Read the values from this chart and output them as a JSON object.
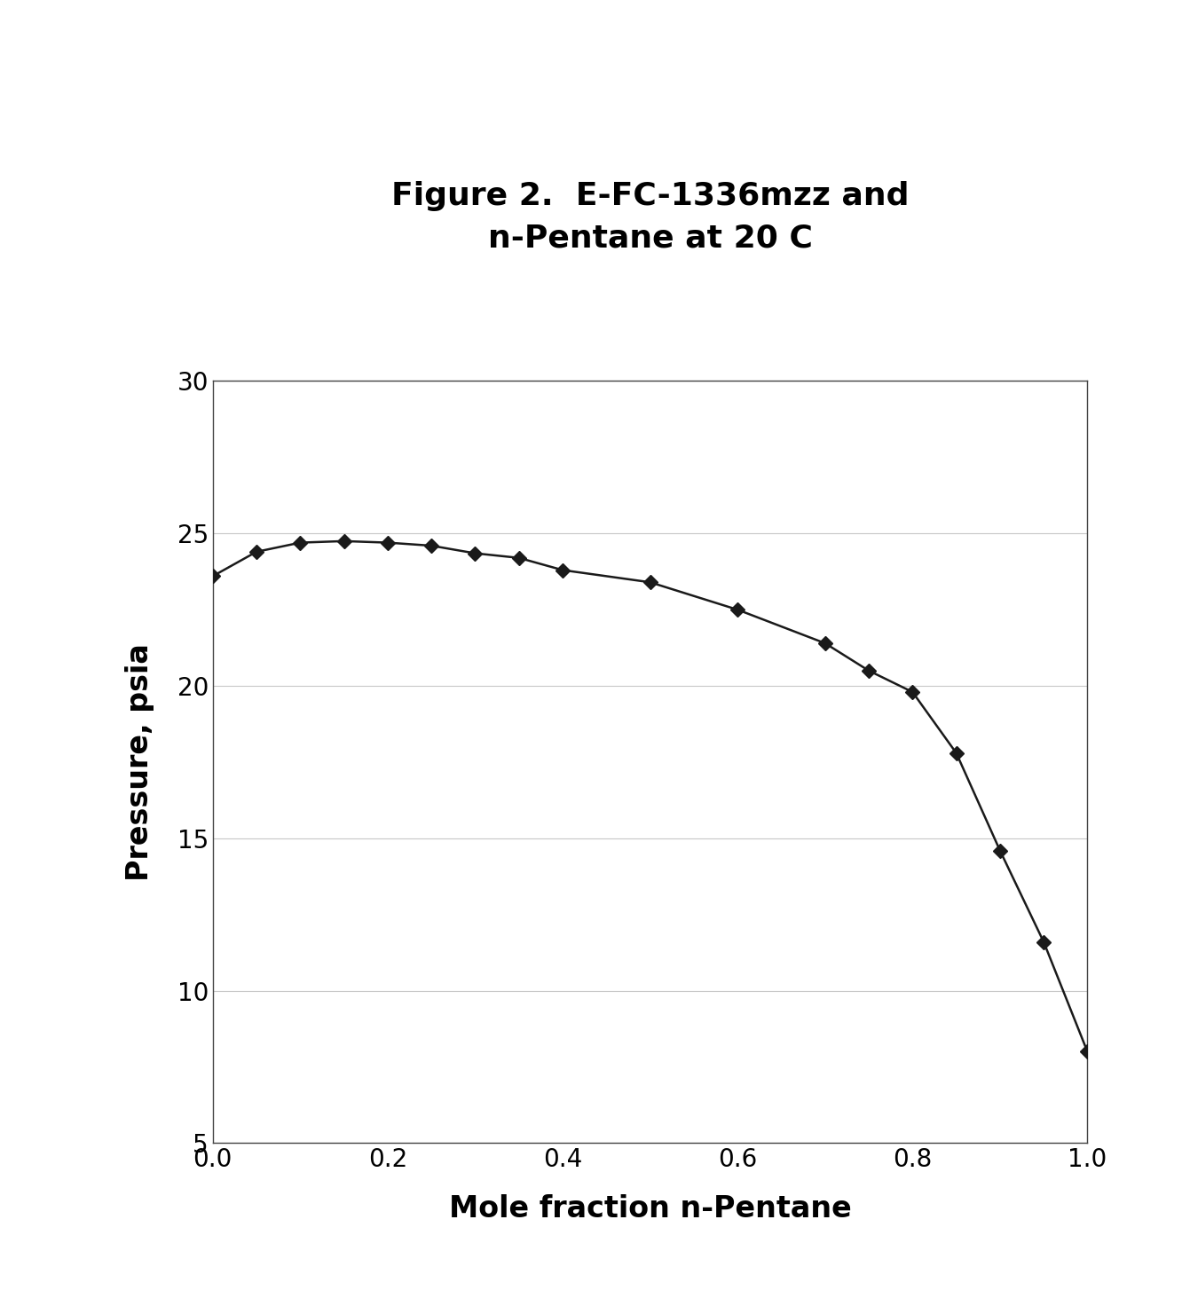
{
  "title_line1": "Figure 2.  E-FC-1336mzz and",
  "title_line2": "n-Pentane at 20 C",
  "xlabel": "Mole fraction n-Pentane",
  "ylabel": "Pressure, psia",
  "x_data": [
    0.0,
    0.05,
    0.1,
    0.15,
    0.2,
    0.25,
    0.3,
    0.35,
    0.4,
    0.5,
    0.6,
    0.7,
    0.75,
    0.8,
    0.85,
    0.9,
    0.95,
    1.0
  ],
  "y_data": [
    23.6,
    24.4,
    24.7,
    24.75,
    24.7,
    24.6,
    24.35,
    24.2,
    23.8,
    23.4,
    22.5,
    21.4,
    20.5,
    19.8,
    17.8,
    14.6,
    11.6,
    8.0
  ],
  "xlim": [
    0,
    1
  ],
  "ylim": [
    5,
    30
  ],
  "xticks": [
    0,
    0.2,
    0.4,
    0.6,
    0.8,
    1.0
  ],
  "yticks": [
    5,
    10,
    15,
    20,
    25,
    30
  ],
  "line_color": "#1a1a1a",
  "marker_color": "#1a1a1a",
  "bg_color": "#ffffff",
  "grid_color": "#c8c8c8",
  "title_fontsize": 26,
  "label_fontsize": 24,
  "tick_fontsize": 20
}
